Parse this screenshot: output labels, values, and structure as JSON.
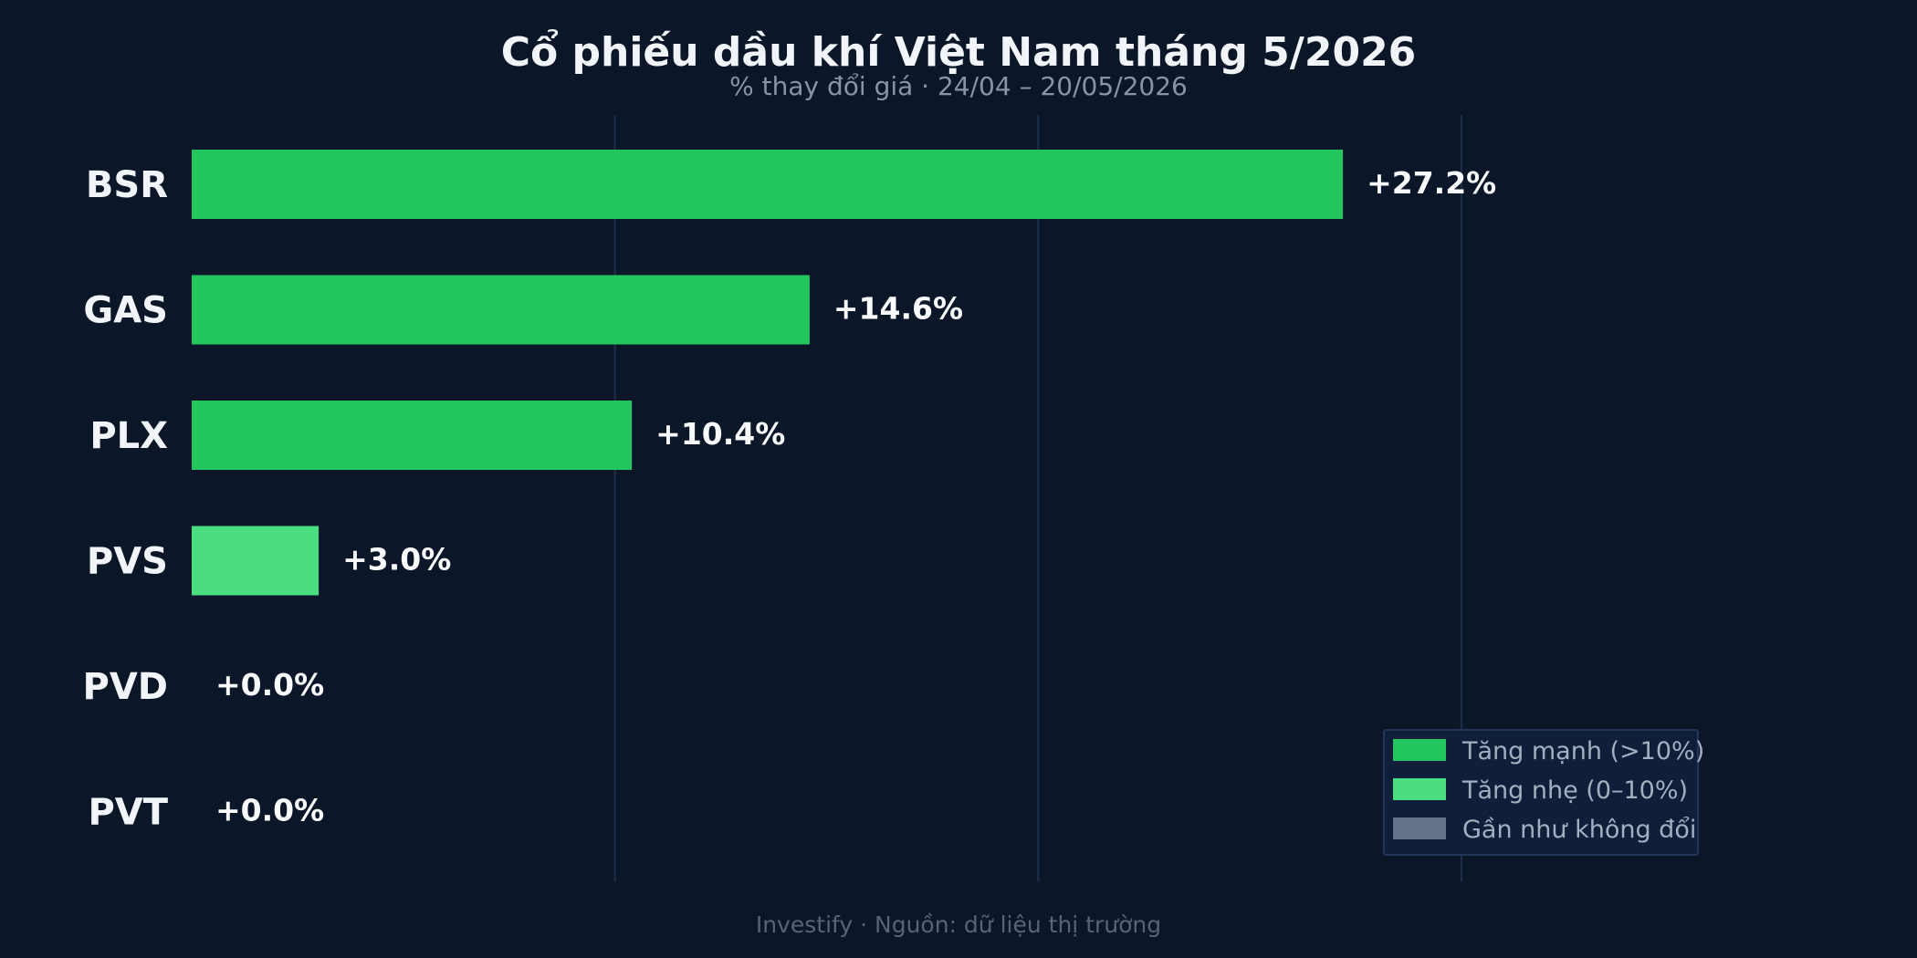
{
  "chart_data": {
    "type": "bar",
    "orientation": "horizontal",
    "title": "Cổ phiếu dầu khí Việt Nam tháng 5/2026",
    "subtitle": "% thay đổi giá · 24/04 – 20/05/2026",
    "categories": [
      "BSR",
      "GAS",
      "PLX",
      "PVS",
      "PVD",
      "PVT"
    ],
    "values": [
      27.2,
      14.6,
      10.4,
      3.0,
      0.0,
      0.0
    ],
    "value_labels": [
      "+27.2%",
      "+14.6%",
      "+10.4%",
      "+3.0%",
      "+0.0%",
      "+0.0%"
    ],
    "classes": [
      "strong",
      "strong",
      "strong",
      "mild",
      "flat",
      "flat"
    ],
    "xlim": [
      0,
      33
    ],
    "gridlines": [
      10,
      20,
      30
    ],
    "grid": true,
    "legend_position": "bottom-right",
    "legend": [
      {
        "key": "strong",
        "label": "Tăng mạnh (>10%)",
        "color": "#22c55e"
      },
      {
        "key": "mild",
        "label": "Tăng nhẹ (0–10%)",
        "color": "#4ade80"
      },
      {
        "key": "flat",
        "label": "Gần như không đổi",
        "color": "#64748b"
      }
    ],
    "footer": "Investify · Nguồn: dữ liệu thị trường"
  },
  "colors": {
    "background": "#0b1628",
    "gridline": "#1e2f4a",
    "legend_bg": "#0f1f3a",
    "legend_border": "#22365a"
  }
}
